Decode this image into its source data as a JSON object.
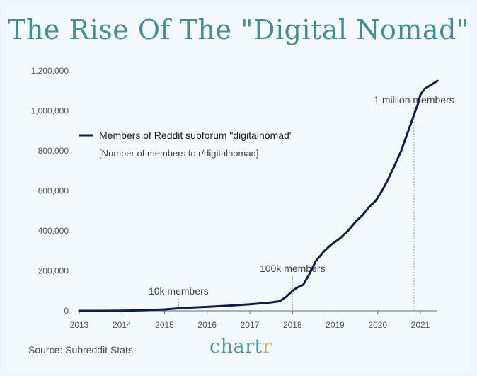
{
  "title": "The Rise Of The \"Digital Nomad\"",
  "source": "Source: Subreddit Stats",
  "brand": {
    "main": "chart",
    "last": "r"
  },
  "colors": {
    "line": "#111b4d",
    "title": "#3f8f95",
    "axis": "#555555",
    "annotation_line": "#999999"
  },
  "chart_data": {
    "type": "line",
    "title": "The Rise Of The \"Digital Nomad\"",
    "xlabel": "",
    "ylabel": "",
    "xlim": [
      2013,
      2021.42
    ],
    "ylim": [
      0,
      1200000
    ],
    "x_ticks": [
      "2013",
      "2014",
      "2015",
      "2016",
      "2017",
      "2018",
      "2019",
      "2020",
      "2021"
    ],
    "y_ticks": [
      "0",
      "200,000",
      "400,000",
      "600,000",
      "800,000",
      "1,000,000",
      "1,200,000"
    ],
    "y_tick_values": [
      0,
      200000,
      400000,
      600000,
      800000,
      1000000,
      1200000
    ],
    "legend": {
      "label": "Members of Reddit subforum \"digitalnomad\"",
      "sublabel": "[Number of members to r/digitalnomad]",
      "placement": "upper-left"
    },
    "series": [
      {
        "name": "Members of Reddit subforum \"digitalnomad\"",
        "x": [
          2013.0,
          2013.5,
          2014.0,
          2014.5,
          2015.0,
          2015.3,
          2015.5,
          2016.0,
          2016.5,
          2017.0,
          2017.5,
          2017.7,
          2017.85,
          2018.0,
          2018.1,
          2018.25,
          2018.4,
          2018.55,
          2018.75,
          2018.9,
          2019.1,
          2019.3,
          2019.5,
          2019.65,
          2019.8,
          2019.95,
          2020.1,
          2020.25,
          2020.4,
          2020.55,
          2020.7,
          2020.85,
          2020.95,
          2021.0,
          2021.1,
          2021.25,
          2021.4
        ],
        "y": [
          0,
          0,
          1000,
          3000,
          7000,
          12000,
          15000,
          20000,
          26000,
          33000,
          42000,
          48000,
          70000,
          100000,
          115000,
          130000,
          185000,
          250000,
          300000,
          330000,
          360000,
          400000,
          450000,
          480000,
          520000,
          550000,
          600000,
          660000,
          730000,
          800000,
          890000,
          980000,
          1040000,
          1080000,
          1110000,
          1130000,
          1150000
        ]
      }
    ],
    "annotations": [
      {
        "label": "10k members",
        "x": 2015.33,
        "y": 10000
      },
      {
        "label": "100k members",
        "x": 2018.0,
        "y": 100000
      },
      {
        "label": "1 million members",
        "x": 2020.85,
        "y": 1000000
      }
    ]
  }
}
